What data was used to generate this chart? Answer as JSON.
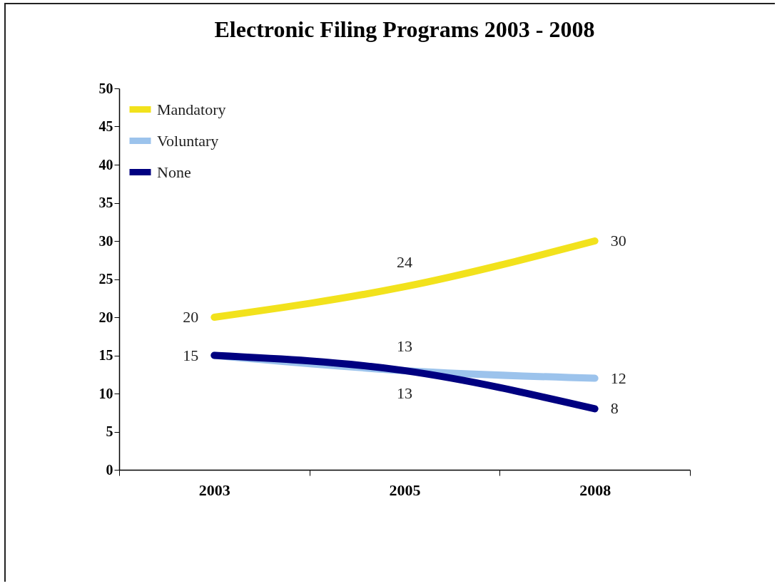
{
  "chart_data": {
    "type": "line",
    "title": "Electronic Filing Programs 2003 - 2008",
    "categories": [
      "2003",
      "2005",
      "2008"
    ],
    "series": [
      {
        "name": "Mandatory",
        "color": "#f2e21c",
        "values": [
          20,
          24,
          30
        ],
        "value_labels": [
          "20",
          "24",
          "30"
        ]
      },
      {
        "name": "Voluntary",
        "color": "#9cc3ec",
        "values": [
          15,
          13,
          12
        ],
        "value_labels": [
          null,
          "13",
          "12"
        ]
      },
      {
        "name": "None",
        "color": "#000080",
        "values": [
          15,
          13,
          8
        ],
        "value_labels": [
          "15",
          "13",
          "8"
        ]
      }
    ],
    "ylim": [
      0,
      50
    ],
    "yticks": [
      0,
      5,
      10,
      15,
      20,
      25,
      30,
      35,
      40,
      45,
      50
    ],
    "grid": false,
    "legend": "top left",
    "marker": "none",
    "line_style": "solid"
  }
}
